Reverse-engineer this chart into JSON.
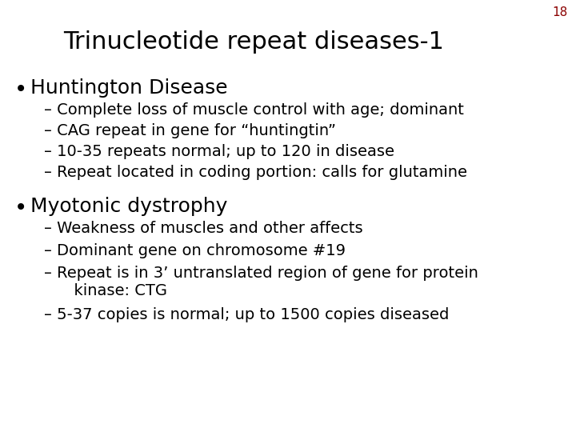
{
  "title": "Trinucleotide repeat diseases-1",
  "slide_number": "18",
  "background_color": "#ffffff",
  "title_color": "#000000",
  "slide_number_color": "#8b0000",
  "text_color": "#000000",
  "title_fontsize": 22,
  "slide_number_fontsize": 11,
  "bullet_fontsize": 18,
  "sub_fontsize": 14,
  "bullet1": "Huntington Disease",
  "bullet1_subs": [
    "– Complete loss of muscle control with age; dominant",
    "– CAG repeat in gene for “huntingtin”",
    "– 10-35 repeats normal; up to 120 in disease",
    "– Repeat located in coding portion: calls for glutamine"
  ],
  "bullet2": "Myotonic dystrophy",
  "bullet2_subs": [
    "– Weakness of muscles and other affects",
    "– Dominant gene on chromosome #19",
    "– Repeat is in 3’ untranslated region of gene for protein\n      kinase: CTG",
    "– 5-37 copies is normal; up to 1500 copies diseased"
  ]
}
